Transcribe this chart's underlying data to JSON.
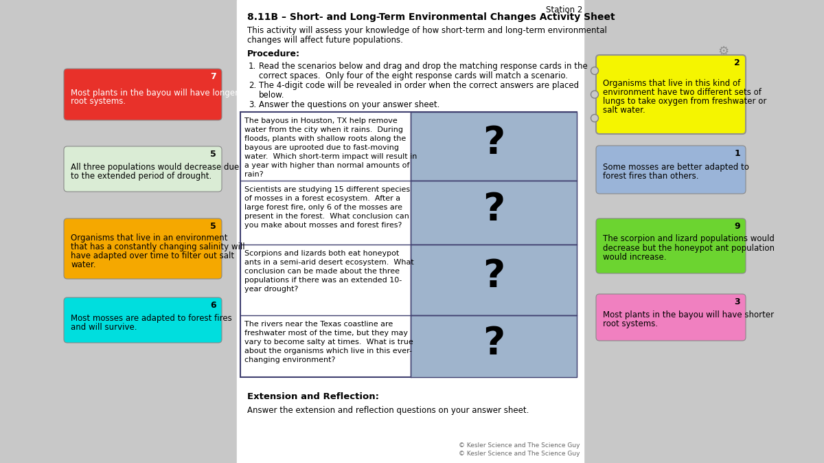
{
  "background_color": "#c8c8c8",
  "center_panel_color": "#ffffff",
  "title_station": "Station 2",
  "title_main": "8.11B – Short- and Long-Term Environmental Changes Activity Sheet",
  "intro_line1": "This activity will assess your knowledge of how short-term and long-term environmental",
  "intro_line2": "changes will affect future populations.",
  "procedure_title": "Procedure:",
  "proc1": "Read the scenarios below and drag and drop the matching response cards in the",
  "proc1b": "correct spaces.  Only four of the eight response cards will match a scenario.",
  "proc2": "The 4-digit code will be revealed in order when the correct answers are placed",
  "proc2b": "below.",
  "proc3": "Answer the questions on your answer sheet.",
  "scenarios": [
    "The bayous in Houston, TX help remove\nwater from the city when it rains.  During\nfloods, plants with shallow roots along the\nbayous are uprooted due to fast-moving\nwater.  Which short-term impact will result in\na year with higher than normal amounts of\nrain?",
    "Scientists are studying 15 different species\nof mosses in a forest ecosystem.  After a\nlarge forest fire, only 6 of the mosses are\npresent in the forest.  What conclusion can\nyou make about mosses and forest fires?",
    "Scorpions and lizards both eat honeypot\nants in a semi-arid desert ecosystem.  What\nconclusion can be made about the three\npopulations if there was an extended 10-\nyear drought?",
    "The rivers near the Texas coastline are\nfreshwater most of the time, but they may\nvary to become salty at times.  What is true\nabout the organisms which live in this ever-\nchanging environment?"
  ],
  "extension_title": "Extension and Reflection:",
  "extension_text": "Answer the extension and reflection questions on your answer sheet.",
  "copyright1": "© Kesler Science and The Science Guy",
  "copyright2": "© Kesler Science and The Science Guy",
  "left_cards": [
    {
      "number": "7",
      "text": "Most plants in the bayou will have longer\nroot systems.",
      "color": "#e8312a",
      "text_color": "#ffffff",
      "number_color": "#ffffff"
    },
    {
      "number": "5",
      "text": "All three populations would decrease due\nto the extended period of drought.",
      "color": "#daecd5",
      "text_color": "#000000",
      "number_color": "#000000"
    },
    {
      "number": "5",
      "text": "Organisms that live in an environment\nthat has a constantly changing salinity will\nhave adapted over time to filter out salt\nwater.",
      "color": "#f5a800",
      "text_color": "#000000",
      "number_color": "#000000"
    },
    {
      "number": "6",
      "text": "Most mosses are adapted to forest fires\nand will survive.",
      "color": "#00dede",
      "text_color": "#000000",
      "number_color": "#000000"
    }
  ],
  "right_cards": [
    {
      "number": "2",
      "text": "Organisms that live in this kind of\nenvironment have two different sets of\nlungs to take oxygen from freshwater or\nsalt water.",
      "color": "#f5f500",
      "text_color": "#000000",
      "number_color": "#000000",
      "has_connector": true
    },
    {
      "number": "1",
      "text": "Some mosses are better adapted to\nforest fires than others.",
      "color": "#9ab4d8",
      "text_color": "#000000",
      "number_color": "#000000",
      "has_connector": false
    },
    {
      "number": "9",
      "text": "The scorpion and lizard populations would\ndecrease but the honeypot ant population\nwould increase.",
      "color": "#6cd430",
      "text_color": "#000000",
      "number_color": "#000000",
      "has_connector": false
    },
    {
      "number": "3",
      "text": "Most plants in the bayou will have shorter\nroot systems.",
      "color": "#f080c0",
      "text_color": "#000000",
      "number_color": "#000000",
      "has_connector": false
    }
  ],
  "answer_box_color": "#9fb4cc",
  "table_border_color": "#404070"
}
